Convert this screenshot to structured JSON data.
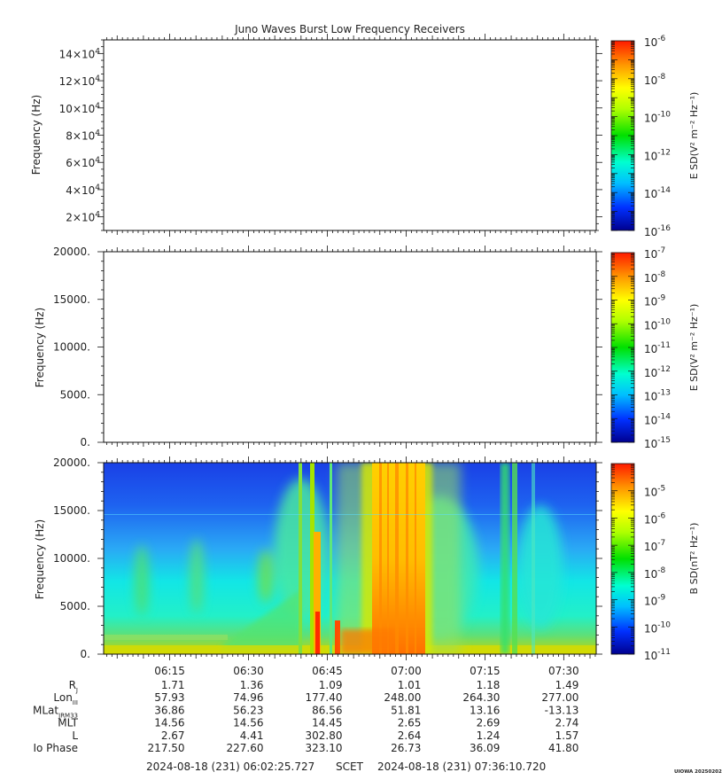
{
  "title": "Juno Waves Burst Low Frequency Receivers",
  "chart_data": [
    {
      "type": "heatmap",
      "panel": "E-field HF",
      "ylabel": "Frequency (Hz)",
      "ylim": [
        10000,
        150000
      ],
      "y_ticks": [
        {
          "base": "2×10",
          "exp": "4",
          "value": 20000
        },
        {
          "base": "4×10",
          "exp": "4",
          "value": 40000
        },
        {
          "base": "6×10",
          "exp": "4",
          "value": 60000
        },
        {
          "base": "8×10",
          "exp": "4",
          "value": 80000
        },
        {
          "base": "10×10",
          "exp": "4",
          "value": 100000
        },
        {
          "base": "12×10",
          "exp": "4",
          "value": 120000
        },
        {
          "base": "14×10",
          "exp": "4",
          "value": 140000
        }
      ],
      "data": "empty",
      "colorbar": {
        "label": "E SD(V² m⁻² Hz⁻¹)",
        "scale": "log",
        "range_exp": [
          -16,
          -6
        ],
        "tick_exps": [
          "-6",
          "-8",
          "-10",
          "-12",
          "-14",
          "-16"
        ]
      }
    },
    {
      "type": "heatmap",
      "panel": "E-field LF",
      "ylabel": "Frequency (Hz)",
      "ylim": [
        0,
        20000
      ],
      "y_ticks": [
        "0.",
        "5000.",
        "10000.",
        "15000.",
        "20000."
      ],
      "data": "empty",
      "colorbar": {
        "label": "E SD(V² m⁻² Hz⁻¹)",
        "scale": "log",
        "range_exp": [
          -15,
          -7
        ],
        "tick_exps": [
          "-7",
          "-8",
          "-9",
          "-10",
          "-11",
          "-12",
          "-13",
          "-14",
          "-15"
        ]
      }
    },
    {
      "type": "heatmap",
      "panel": "B-field",
      "ylabel": "Frequency (Hz)",
      "ylim": [
        0,
        20000
      ],
      "y_ticks": [
        "0.",
        "5000.",
        "10000.",
        "15000.",
        "20000."
      ],
      "x_time_range": [
        "06:02:25.727",
        "07:36:10.720"
      ],
      "x_tick_labels": [
        "06:15",
        "06:30",
        "06:45",
        "07:00",
        "07:15",
        "07:30"
      ],
      "background_level": "low (blue at high frequency, cyan/green at low frequency)",
      "notable_features": [
        {
          "time": "06:40–06:44",
          "desc": "narrow intense vertical stripes reaching red near 0–2 kHz"
        },
        {
          "time": "06:55–07:02",
          "desc": "broad intense yellow/orange emission band spanning all frequencies"
        },
        {
          "time": "07:20",
          "desc": "narrow green vertical stripes"
        }
      ],
      "colorbar": {
        "label": "B SD(nT² Hz⁻¹)",
        "scale": "log",
        "range_exp": [
          -11,
          -4
        ],
        "tick_exps": [
          "-5",
          "-6",
          "-7",
          "-8",
          "-9",
          "-10",
          "-11"
        ]
      }
    }
  ],
  "ephemeris": {
    "rows": [
      {
        "label": "R",
        "sub": "J",
        "values": [
          "1.71",
          "1.36",
          "1.09",
          "1.01",
          "1.18",
          "1.49"
        ]
      },
      {
        "label": "Lon",
        "sub": "III",
        "values": [
          "57.93",
          "74.96",
          "177.40",
          "248.00",
          "264.30",
          "277.00"
        ]
      },
      {
        "label": "MLat",
        "sub": "JRM33",
        "values": [
          "36.86",
          "56.23",
          "86.56",
          "51.81",
          "13.16",
          "-13.13"
        ]
      },
      {
        "label": "MLT",
        "sub": "",
        "values": [
          "14.56",
          "14.56",
          "14.45",
          "2.65",
          "2.69",
          "2.74"
        ]
      },
      {
        "label": "L",
        "sub": "",
        "values": [
          "2.67",
          "4.41",
          "302.80",
          "2.64",
          "1.24",
          "1.57"
        ]
      },
      {
        "label": "Io Phase",
        "sub": "",
        "values": [
          "217.50",
          "227.60",
          "323.10",
          "26.73",
          "36.09",
          "41.80"
        ]
      }
    ]
  },
  "footer": {
    "start": "2024-08-18 (231) 06:02:25.727",
    "scet": "SCET",
    "end": "2024-08-18 (231) 07:36:10.720",
    "credit": "UIOWA 20250202"
  }
}
